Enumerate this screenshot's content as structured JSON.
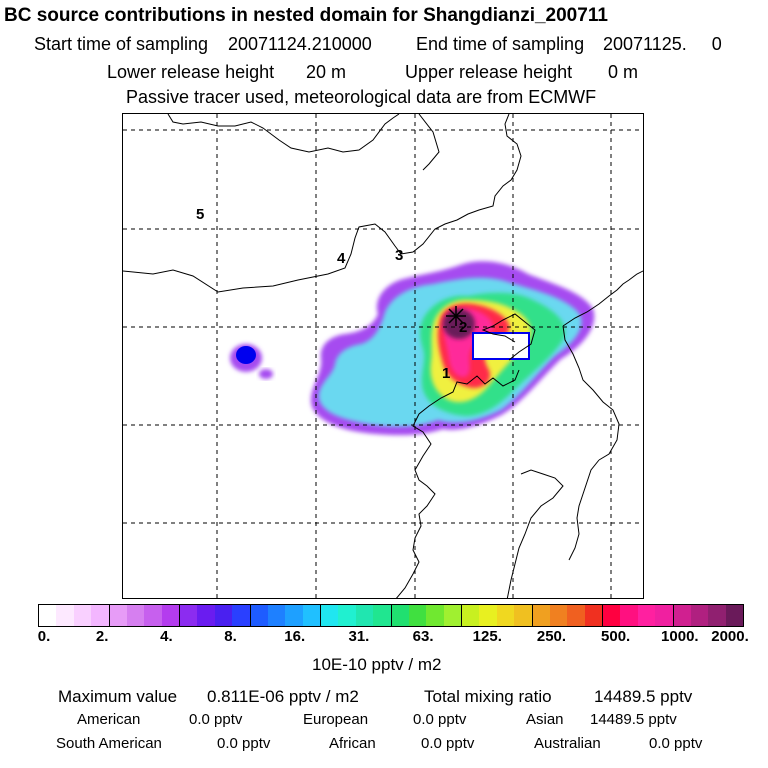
{
  "header": {
    "title": "BC  source contributions in nested domain for Shangdianzi_200711",
    "start_label": "Start time of sampling",
    "start_value": "20071124.210000",
    "end_label": "End time of sampling",
    "end_value": "20071125.     0",
    "lower_label": "Lower release height",
    "lower_value": "20 m",
    "upper_label": "Upper release height",
    "upper_value": "0 m",
    "note": "Passive tracer used, meteorological data are from ECMWF"
  },
  "map": {
    "labels": [
      "5",
      "4",
      "3",
      "2",
      "1"
    ],
    "plume_colors": {
      "outer": "#6ad8f0",
      "edge": "#0000ee",
      "violet": "#a64cf0",
      "green": "#33e08a",
      "yellow": "#f0f040",
      "red": "#ff2a4a",
      "pink": "#ff2a9a",
      "core": "#6b1a5a"
    }
  },
  "colorbar": {
    "colors": [
      "#ffffff",
      "#fde9ff",
      "#f9d0ff",
      "#f3b6ff",
      "#e79cf7",
      "#d67ff0",
      "#c760ee",
      "#b43cee",
      "#8c2cf0",
      "#6a1cf0",
      "#4a20f0",
      "#2a40ff",
      "#1e5cff",
      "#1e80ff",
      "#1ea0ff",
      "#20c0ff",
      "#20e6f0",
      "#20f0d0",
      "#20e6b0",
      "#20e690",
      "#20e070",
      "#40e040",
      "#70e830",
      "#a0f030",
      "#c8f020",
      "#e8f020",
      "#f0d820",
      "#f0c020",
      "#f0a020",
      "#f08020",
      "#f06020",
      "#f03020",
      "#ff0040",
      "#ff1080",
      "#ff20a0",
      "#f020a0",
      "#d02090",
      "#b02080",
      "#902070",
      "#6a1a5a"
    ],
    "ticks": [
      "0.",
      "2.",
      "4.",
      "8.",
      "16.",
      "31.",
      "63.",
      "125.",
      "250.",
      "500.",
      "1000.",
      "2000."
    ],
    "unit": "10E-10 pptv / m2"
  },
  "stats": {
    "max_label": "Maximum value",
    "max_value": "0.811E-06 pptv / m2",
    "total_label": "Total mixing ratio",
    "total_value": "14489.5 pptv",
    "regions": [
      {
        "name": "American",
        "value": "0.0 pptv"
      },
      {
        "name": "European",
        "value": "0.0 pptv"
      },
      {
        "name": "Asian",
        "value": "14489.5 pptv"
      },
      {
        "name": "South American",
        "value": "0.0 pptv"
      },
      {
        "name": "African",
        "value": "0.0 pptv"
      },
      {
        "name": "Australian",
        "value": "0.0 pptv"
      }
    ]
  }
}
